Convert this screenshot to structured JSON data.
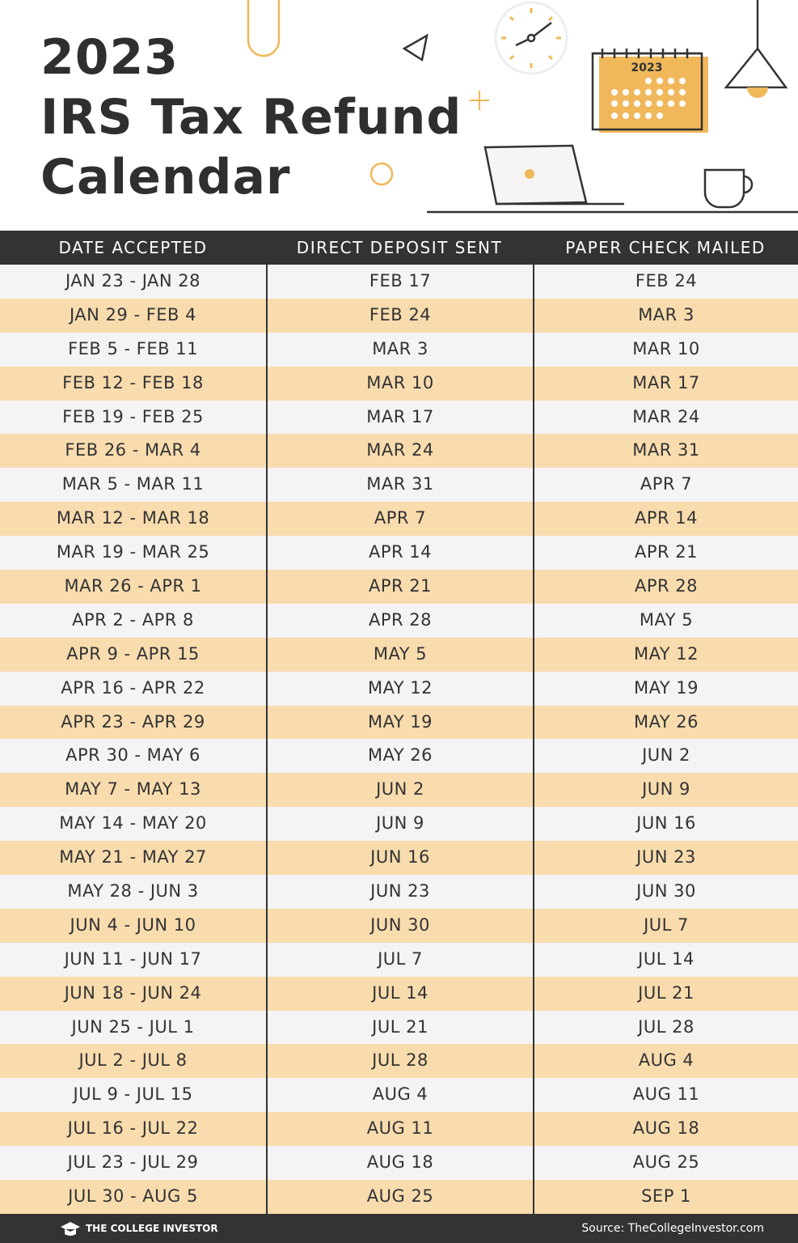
{
  "header": {
    "title_lines": [
      "2023",
      "IRS Tax Refund",
      "Calendar"
    ],
    "illustration_label": "2023"
  },
  "table": {
    "columns": [
      "DATE ACCEPTED",
      "DIRECT DEPOSIT SENT",
      "PAPER CHECK MAILED"
    ],
    "rows": [
      [
        "JAN 23 - JAN 28",
        "FEB 17",
        "FEB 24"
      ],
      [
        "JAN 29 - FEB 4",
        "FEB 24",
        "MAR 3"
      ],
      [
        "FEB 5 - FEB 11",
        "MAR 3",
        "MAR 10"
      ],
      [
        "FEB 12 - FEB 18",
        "MAR 10",
        "MAR 17"
      ],
      [
        "FEB 19 - FEB 25",
        "MAR 17",
        "MAR 24"
      ],
      [
        "FEB 26 - MAR 4",
        "MAR 24",
        "MAR 31"
      ],
      [
        "MAR 5 - MAR 11",
        "MAR 31",
        "APR 7"
      ],
      [
        "MAR 12 - MAR 18",
        "APR 7",
        "APR 14"
      ],
      [
        "MAR 19 - MAR 25",
        "APR 14",
        "APR 21"
      ],
      [
        "MAR 26 - APR 1",
        "APR 21",
        "APR 28"
      ],
      [
        "APR 2 - APR 8",
        "APR 28",
        "MAY 5"
      ],
      [
        "APR 9 - APR 15",
        "MAY 5",
        "MAY 12"
      ],
      [
        "APR 16 - APR 22",
        "MAY 12",
        "MAY 19"
      ],
      [
        "APR 23 - APR 29",
        "MAY 19",
        "MAY 26"
      ],
      [
        "APR 30 - MAY 6",
        "MAY 26",
        "JUN 2"
      ],
      [
        "MAY 7 - MAY 13",
        "JUN 2",
        "JUN 9"
      ],
      [
        "MAY 14 - MAY 20",
        "JUN 9",
        "JUN 16"
      ],
      [
        "MAY 21 - MAY 27",
        "JUN 16",
        "JUN 23"
      ],
      [
        "MAY 28 - JUN 3",
        "JUN 23",
        "JUN 30"
      ],
      [
        "JUN 4 - JUN 10",
        "JUN 30",
        "JUL 7"
      ],
      [
        "JUN 11 - JUN 17",
        "JUL 7",
        "JUL 14"
      ],
      [
        "JUN 18 - JUN 24",
        "JUL 14",
        "JUL 21"
      ],
      [
        "JUN 25 - JUL 1",
        "JUL 21",
        "JUL 28"
      ],
      [
        "JUL 2 - JUL 8",
        "JUL 28",
        "AUG 4"
      ],
      [
        "JUL 9 - JUL 15",
        "AUG 4",
        "AUG 11"
      ],
      [
        "JUL 16 - JUL 22",
        "AUG 11",
        "AUG 18"
      ],
      [
        "JUL 23 - JUL 29",
        "AUG 18",
        "AUG 25"
      ],
      [
        "JUL 30 - AUG 5",
        "AUG 25",
        "SEP 1"
      ]
    ]
  },
  "footer": {
    "brand": "THE COLLEGE INVESTOR",
    "source": "Source: TheCollegeInvestor.com"
  }
}
